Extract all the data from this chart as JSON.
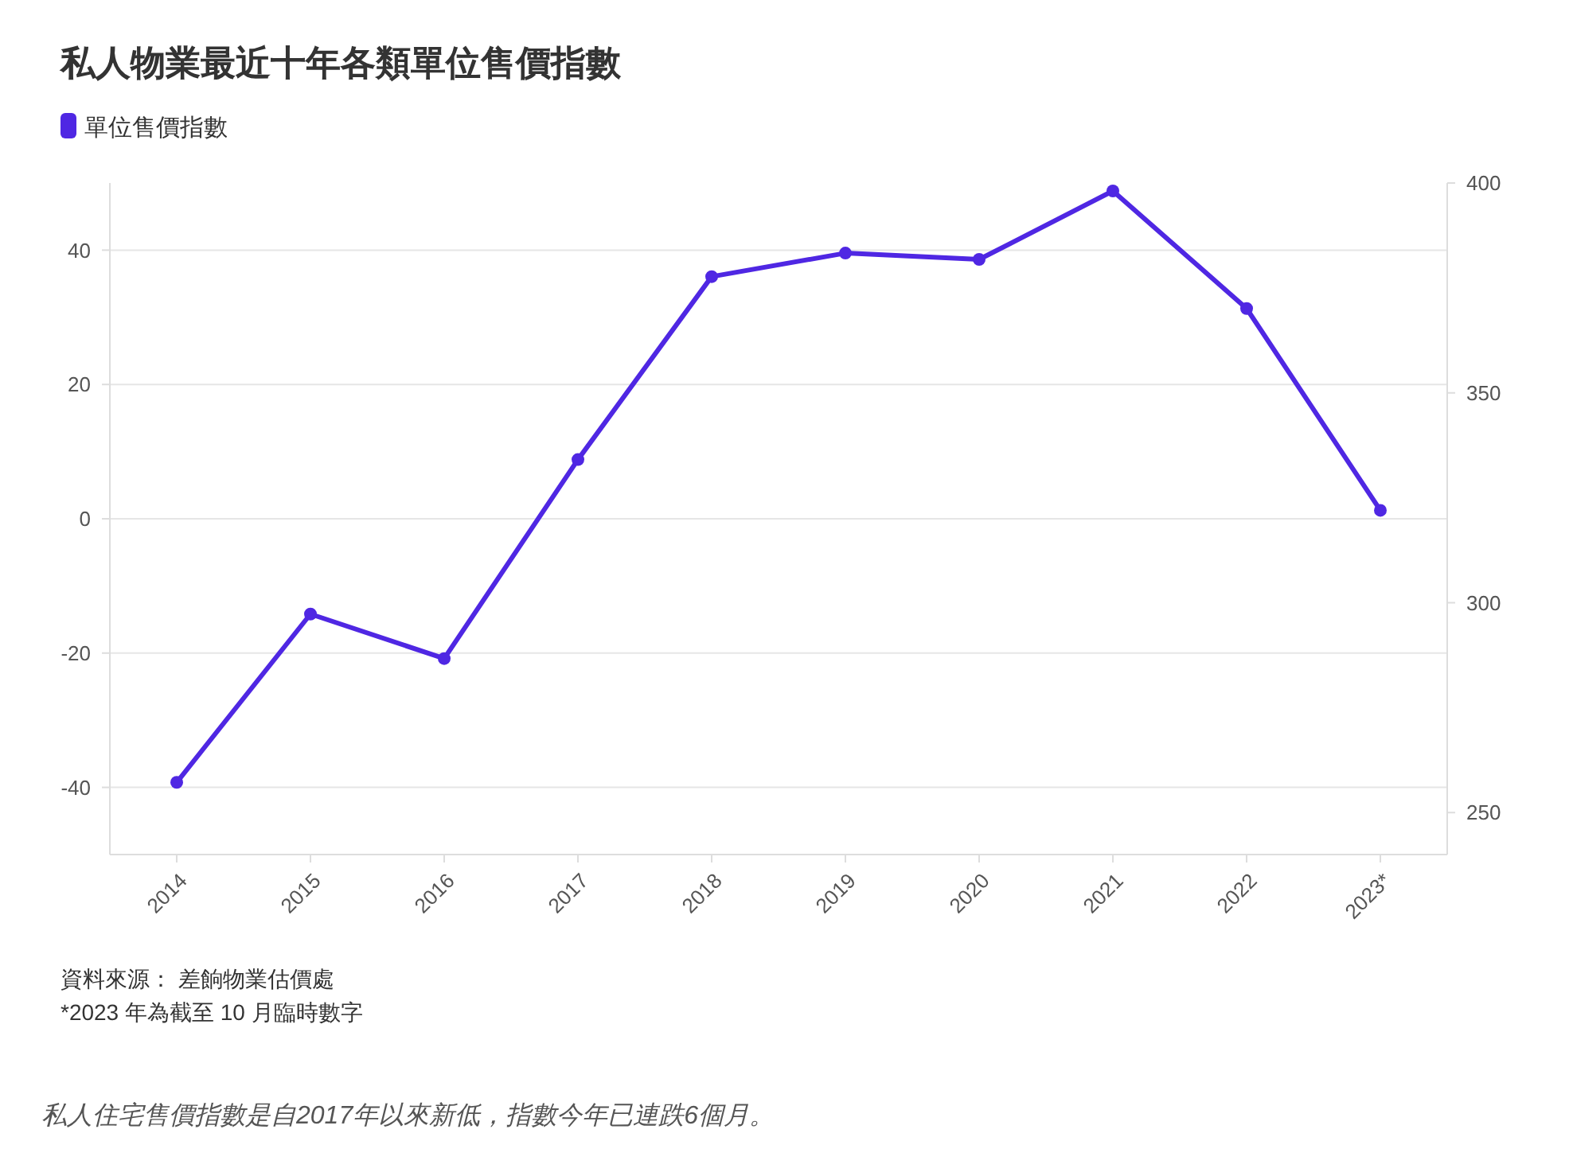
{
  "chart_data": {
    "type": "line",
    "title": "私人物業最近十年各類單位售價指數",
    "categories": [
      "2014",
      "2015",
      "2016",
      "2017",
      "2018",
      "2019",
      "2020",
      "2021",
      "2022",
      "2023*"
    ],
    "series": [
      {
        "name": "單位售價指數",
        "color": "#4f27e3",
        "axis": "y2",
        "values": [
          257.2,
          297.3,
          286.7,
          334.1,
          377.7,
          383.3,
          381.8,
          398.1,
          370.1,
          322.0
        ]
      }
    ],
    "ylim": [
      -50,
      50
    ],
    "yticks": [
      -40,
      -20,
      0,
      20,
      40
    ],
    "y2lim": [
      240,
      400
    ],
    "y2ticks": [
      250,
      300,
      350,
      400
    ],
    "grid": "y",
    "legend": "top left",
    "marker": "circle",
    "line_style": "solid",
    "annotations": [
      "資料來源： 差餉物業估價處",
      "*2023 年為截至 10 月臨時數字",
      "私人住宅售價指數是自2017年以來新低，指數今年已連跌6個月。"
    ]
  }
}
